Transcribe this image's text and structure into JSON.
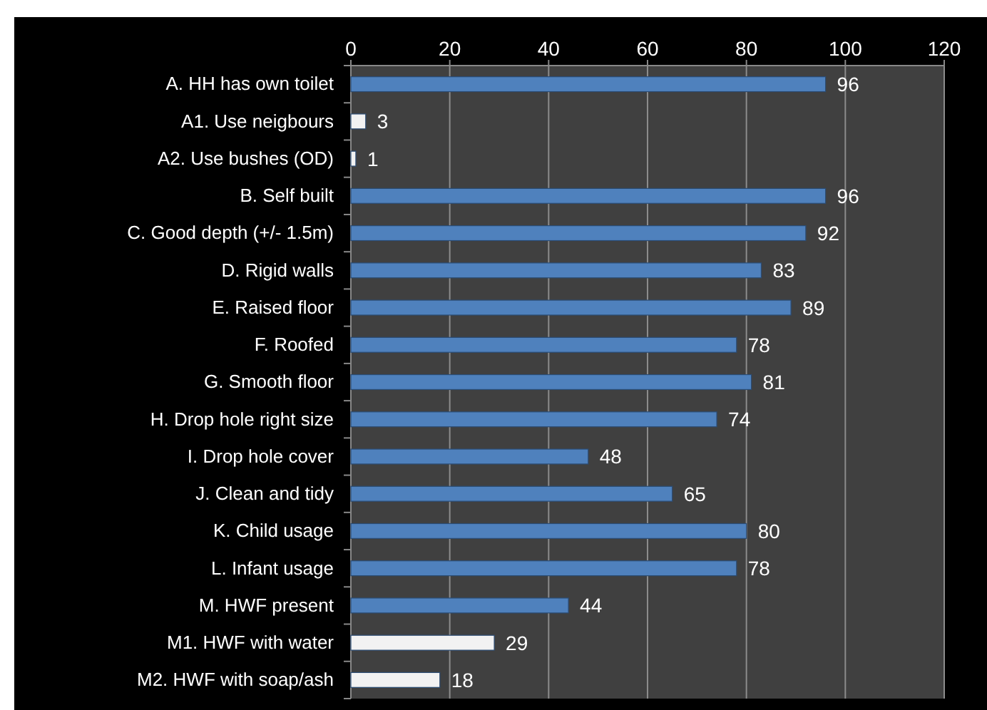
{
  "chart_data": {
    "type": "bar",
    "orientation": "horizontal",
    "categories": [
      "A. HH has own toilet",
      "A1. Use neigbours",
      "A2. Use bushes (OD)",
      "B. Self built",
      "C. Good depth (+/- 1.5m)",
      "D. Rigid walls",
      "E. Raised floor",
      "F. Roofed",
      "G. Smooth floor",
      "H. Drop hole right size",
      "I. Drop hole cover",
      "J. Clean and tidy",
      "K. Child usage",
      "L. Infant usage",
      "M. HWF present",
      "M1. HWF with water",
      "M2. HWF with soap/ash"
    ],
    "values": [
      96,
      3,
      1,
      96,
      92,
      83,
      89,
      78,
      81,
      74,
      48,
      65,
      80,
      78,
      44,
      29,
      18
    ],
    "colors": [
      "#4f81bd",
      "#f2f2f2",
      "#f2f2f2",
      "#4f81bd",
      "#4f81bd",
      "#4f81bd",
      "#4f81bd",
      "#4f81bd",
      "#4f81bd",
      "#4f81bd",
      "#4f81bd",
      "#4f81bd",
      "#4f81bd",
      "#4f81bd",
      "#4f81bd",
      "#f2f2f2",
      "#f2f2f2"
    ],
    "xlim": [
      0,
      120
    ],
    "xticks": [
      0,
      20,
      40,
      60,
      80,
      100,
      120
    ],
    "grid": "x",
    "data_labels": true
  }
}
